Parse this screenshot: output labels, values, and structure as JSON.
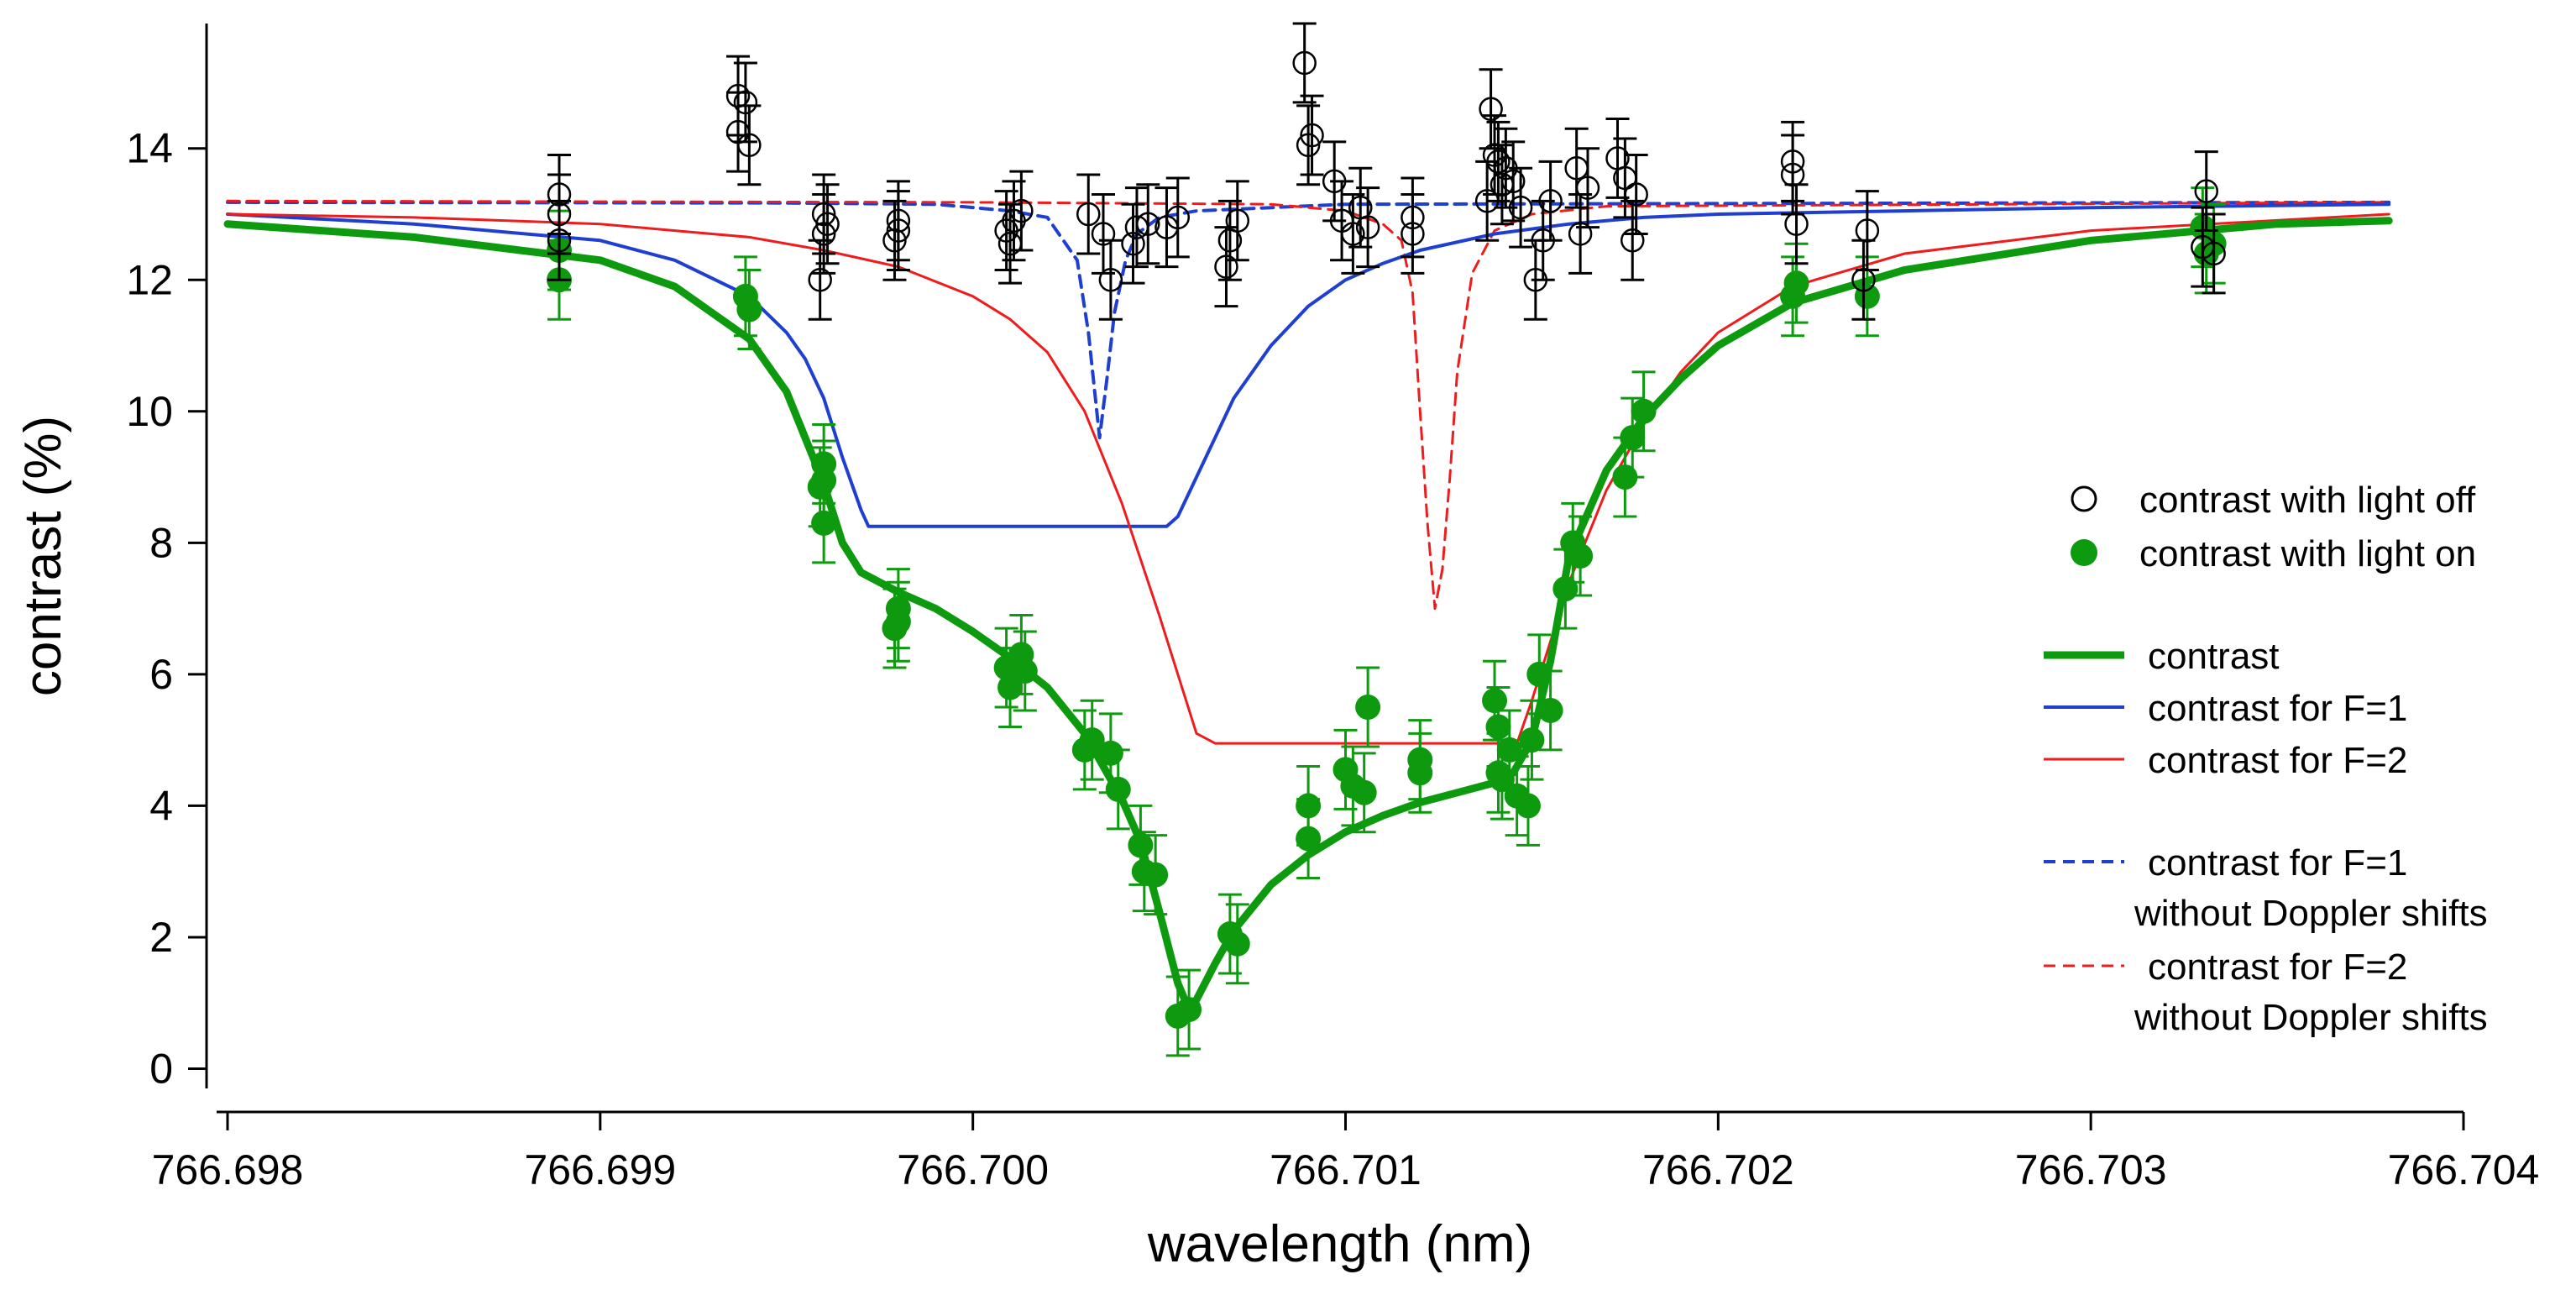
{
  "chart_data": {
    "type": "scatter",
    "title": "",
    "xlabel": "wavelength (nm)",
    "ylabel": "contrast (%)",
    "xlim": [
      766.698,
      766.704
    ],
    "ylim": [
      -0.3,
      15.9
    ],
    "x_ticks": [
      766.698,
      766.699,
      766.7,
      766.701,
      766.702,
      766.703,
      766.704
    ],
    "x_tick_labels": [
      "766.698",
      "766.699",
      "766.700",
      "766.701",
      "766.702",
      "766.703",
      "766.704"
    ],
    "y_ticks": [
      0,
      2,
      4,
      6,
      8,
      10,
      12,
      14
    ],
    "y_tick_labels": [
      "0",
      "2",
      "4",
      "6",
      "8",
      "10",
      "12",
      "14"
    ],
    "grid": false,
    "legend_position": "right",
    "legend": [
      {
        "key": "off",
        "label": "contrast with light off"
      },
      {
        "key": "on",
        "label": "contrast with light on"
      },
      {
        "key": "fit",
        "label": "contrast"
      },
      {
        "key": "f1",
        "label": "contrast for F=1"
      },
      {
        "key": "f2",
        "label": "contrast for F=2"
      },
      {
        "key": "f1nd",
        "label": "contrast for F=1",
        "label2": "without Doppler shifts"
      },
      {
        "key": "f2nd",
        "label": "contrast for F=2",
        "label2": "without Doppler shifts"
      }
    ],
    "colors": {
      "off": "#000000",
      "on": "#0e9a0e",
      "fit": "#0e9a0e",
      "f1": "#1f3fd1",
      "f2": "#ee1c1c"
    },
    "error_bar": 0.6,
    "series": [
      {
        "name": "contrast with light off",
        "style": "open-circle",
        "points": [
          [
            766.69889,
            13.3
          ],
          [
            766.69889,
            12.6
          ],
          [
            766.69889,
            13.0
          ],
          [
            766.69937,
            14.25
          ],
          [
            766.69937,
            14.8
          ],
          [
            766.69939,
            14.7
          ],
          [
            766.6994,
            14.05
          ],
          [
            766.69959,
            12.0
          ],
          [
            766.6996,
            12.7
          ],
          [
            766.6996,
            13.0
          ],
          [
            766.69961,
            12.85
          ],
          [
            766.69979,
            12.6
          ],
          [
            766.6998,
            12.9
          ],
          [
            766.6998,
            12.75
          ],
          [
            766.70009,
            12.75
          ],
          [
            766.7001,
            12.55
          ],
          [
            766.70011,
            12.9
          ],
          [
            766.70013,
            13.05
          ],
          [
            766.70031,
            13.0
          ],
          [
            766.70035,
            12.7
          ],
          [
            766.70037,
            12.0
          ],
          [
            766.70043,
            12.55
          ],
          [
            766.70044,
            12.8
          ],
          [
            766.70047,
            12.85
          ],
          [
            766.70052,
            12.8
          ],
          [
            766.70055,
            12.95
          ],
          [
            766.70068,
            12.2
          ],
          [
            766.70069,
            12.6
          ],
          [
            766.70071,
            12.9
          ],
          [
            766.70089,
            15.3
          ],
          [
            766.7009,
            14.05
          ],
          [
            766.70091,
            14.2
          ],
          [
            766.70097,
            13.5
          ],
          [
            766.70099,
            12.9
          ],
          [
            766.70102,
            12.7
          ],
          [
            766.70104,
            13.1
          ],
          [
            766.70106,
            12.8
          ],
          [
            766.70118,
            12.95
          ],
          [
            766.70118,
            12.7
          ],
          [
            766.70138,
            13.2
          ],
          [
            766.70139,
            14.6
          ],
          [
            766.7014,
            13.9
          ],
          [
            766.70141,
            13.8
          ],
          [
            766.70142,
            13.45
          ],
          [
            766.70143,
            13.7
          ],
          [
            766.70145,
            13.5
          ],
          [
            766.70147,
            13.1
          ],
          [
            766.70151,
            12.0
          ],
          [
            766.70153,
            12.6
          ],
          [
            766.70155,
            13.2
          ],
          [
            766.70162,
            13.7
          ],
          [
            766.70163,
            12.7
          ],
          [
            766.70165,
            13.4
          ],
          [
            766.70173,
            13.85
          ],
          [
            766.70175,
            13.55
          ],
          [
            766.70177,
            12.6
          ],
          [
            766.70178,
            13.3
          ],
          [
            766.7022,
            13.8
          ],
          [
            766.7022,
            13.6
          ],
          [
            766.70221,
            12.85
          ],
          [
            766.7024,
            12.75
          ],
          [
            766.70239,
            12.0
          ],
          [
            766.7033,
            12.5
          ],
          [
            766.70331,
            13.35
          ],
          [
            766.70333,
            12.4
          ]
        ]
      },
      {
        "name": "contrast with light on",
        "style": "filled-circle",
        "points": [
          [
            766.69889,
            12.45
          ],
          [
            766.69889,
            12.0
          ],
          [
            766.69939,
            11.75
          ],
          [
            766.6994,
            11.55
          ],
          [
            766.6996,
            9.2
          ],
          [
            766.6996,
            8.95
          ],
          [
            766.69959,
            8.85
          ],
          [
            766.6996,
            8.3
          ],
          [
            766.6998,
            7.0
          ],
          [
            766.6998,
            6.8
          ],
          [
            766.69979,
            6.7
          ],
          [
            766.70009,
            6.1
          ],
          [
            766.7001,
            5.8
          ],
          [
            766.70013,
            6.3
          ],
          [
            766.70014,
            6.05
          ],
          [
            766.7003,
            4.85
          ],
          [
            766.70032,
            5.0
          ],
          [
            766.70037,
            4.8
          ],
          [
            766.70039,
            4.25
          ],
          [
            766.70045,
            3.4
          ],
          [
            766.70046,
            3.0
          ],
          [
            766.70049,
            2.95
          ],
          [
            766.70055,
            0.8
          ],
          [
            766.70058,
            0.9
          ],
          [
            766.70069,
            2.05
          ],
          [
            766.70071,
            1.9
          ],
          [
            766.7009,
            4.0
          ],
          [
            766.7009,
            3.5
          ],
          [
            766.701,
            4.55
          ],
          [
            766.70102,
            4.3
          ],
          [
            766.70105,
            4.2
          ],
          [
            766.70106,
            5.5
          ],
          [
            766.7012,
            4.7
          ],
          [
            766.7012,
            4.5
          ],
          [
            766.7014,
            5.6
          ],
          [
            766.70141,
            5.2
          ],
          [
            766.70141,
            4.5
          ],
          [
            766.70142,
            4.4
          ],
          [
            766.70144,
            4.85
          ],
          [
            766.70146,
            4.15
          ],
          [
            766.70149,
            4.0
          ],
          [
            766.7015,
            5.0
          ],
          [
            766.70152,
            6.0
          ],
          [
            766.70155,
            5.45
          ],
          [
            766.70159,
            7.3
          ],
          [
            766.70161,
            8.0
          ],
          [
            766.70163,
            7.8
          ],
          [
            766.70175,
            9.0
          ],
          [
            766.70177,
            9.6
          ],
          [
            766.7018,
            10.0
          ],
          [
            766.7022,
            11.75
          ],
          [
            766.70221,
            11.95
          ],
          [
            766.7024,
            11.75
          ],
          [
            766.7033,
            12.8
          ],
          [
            766.70331,
            12.4
          ],
          [
            766.70333,
            12.55
          ]
        ]
      }
    ],
    "curves": [
      {
        "name": "contrast",
        "style": "solid-thick",
        "x": [
          766.698,
          766.6985,
          766.699,
          766.6992,
          766.6994,
          766.6995,
          766.6996,
          766.69965,
          766.6997,
          766.6998,
          766.6999,
          766.7,
          766.7001,
          766.7002,
          766.7003,
          766.7004,
          766.70045,
          766.7005,
          766.70055,
          766.70058,
          766.7006,
          766.70065,
          766.7007,
          766.7008,
          766.7009,
          766.701,
          766.7011,
          766.7012,
          766.7013,
          766.7014,
          766.70145,
          766.7015,
          766.70155,
          766.7016,
          766.7017,
          766.7018,
          766.7019,
          766.702,
          766.7022,
          766.7025,
          766.703,
          766.7035,
          766.7038
        ],
        "y": [
          12.85,
          12.65,
          12.3,
          11.9,
          11.1,
          10.3,
          8.9,
          8.0,
          7.55,
          7.25,
          7.0,
          6.65,
          6.25,
          5.8,
          5.1,
          4.1,
          3.45,
          2.4,
          1.3,
          0.9,
          1.05,
          1.6,
          2.1,
          2.8,
          3.25,
          3.6,
          3.85,
          4.05,
          4.2,
          4.35,
          4.5,
          5.0,
          6.2,
          7.8,
          9.1,
          9.9,
          10.5,
          11.0,
          11.65,
          12.15,
          12.6,
          12.85,
          12.9
        ]
      },
      {
        "name": "contrast for F=1",
        "style": "solid",
        "x": [
          766.698,
          766.6985,
          766.699,
          766.6992,
          766.6994,
          766.6995,
          766.69955,
          766.6996,
          766.69965,
          766.6997,
          766.69972,
          766.6998,
          766.7,
          766.7002,
          766.7004,
          766.7005,
          766.70052,
          766.70055,
          766.7006,
          766.70065,
          766.7007,
          766.7008,
          766.7009,
          766.701,
          766.7011,
          766.7012,
          766.7014,
          766.7016,
          766.7018,
          766.702,
          766.7025,
          766.703,
          766.7038
        ],
        "y": [
          13.0,
          12.85,
          12.6,
          12.3,
          11.75,
          11.2,
          10.8,
          10.2,
          9.3,
          8.5,
          8.25,
          8.25,
          8.25,
          8.25,
          8.25,
          8.25,
          8.25,
          8.4,
          9.0,
          9.6,
          10.2,
          11.0,
          11.6,
          12.0,
          12.25,
          12.45,
          12.7,
          12.85,
          12.95,
          13.0,
          13.05,
          13.1,
          13.15
        ]
      },
      {
        "name": "contrast for F=2",
        "style": "solid",
        "x": [
          766.698,
          766.6985,
          766.699,
          766.6992,
          766.6994,
          766.6996,
          766.6998,
          766.7,
          766.7001,
          766.7002,
          766.7003,
          766.7004,
          766.7005,
          766.70055,
          766.7006,
          766.70065,
          766.7008,
          766.701,
          766.7012,
          766.7014,
          766.70146,
          766.7015,
          766.7016,
          766.7017,
          766.7018,
          766.7019,
          766.702,
          766.7022,
          766.7025,
          766.703,
          766.7038
        ],
        "y": [
          13.0,
          12.95,
          12.85,
          12.75,
          12.65,
          12.45,
          12.2,
          11.75,
          11.4,
          10.9,
          10.0,
          8.6,
          6.9,
          6.0,
          5.1,
          4.95,
          4.95,
          4.95,
          4.95,
          4.95,
          4.95,
          5.6,
          7.4,
          8.8,
          9.8,
          10.6,
          11.2,
          11.9,
          12.4,
          12.75,
          13.0
        ]
      },
      {
        "name": "contrast for F=1 without Doppler shifts",
        "style": "dashed",
        "x": [
          766.698,
          766.6995,
          766.6999,
          766.7001,
          766.7002,
          766.70028,
          766.70031,
          766.70034,
          766.70036,
          766.70038,
          766.70041,
          766.70044,
          766.7005,
          766.7006,
          766.7008,
          766.701,
          766.7038
        ],
        "y": [
          13.18,
          13.17,
          13.15,
          13.05,
          12.95,
          12.3,
          11.2,
          9.6,
          10.5,
          11.5,
          12.3,
          12.7,
          12.95,
          13.05,
          13.1,
          13.15,
          13.18
        ]
      },
      {
        "name": "contrast for F=2 without Doppler shifts",
        "style": "dashed",
        "x": [
          766.698,
          766.7,
          766.7008,
          766.701,
          766.7011,
          766.70115,
          766.70118,
          766.7012,
          766.70122,
          766.70124,
          766.70126,
          766.70128,
          766.7013,
          766.70134,
          766.7014,
          766.7015,
          766.7017,
          766.7038
        ],
        "y": [
          13.2,
          13.18,
          13.15,
          13.05,
          12.85,
          12.6,
          11.8,
          10.0,
          8.3,
          7.0,
          7.6,
          9.0,
          10.6,
          12.1,
          12.75,
          13.0,
          13.12,
          13.18
        ]
      }
    ]
  }
}
